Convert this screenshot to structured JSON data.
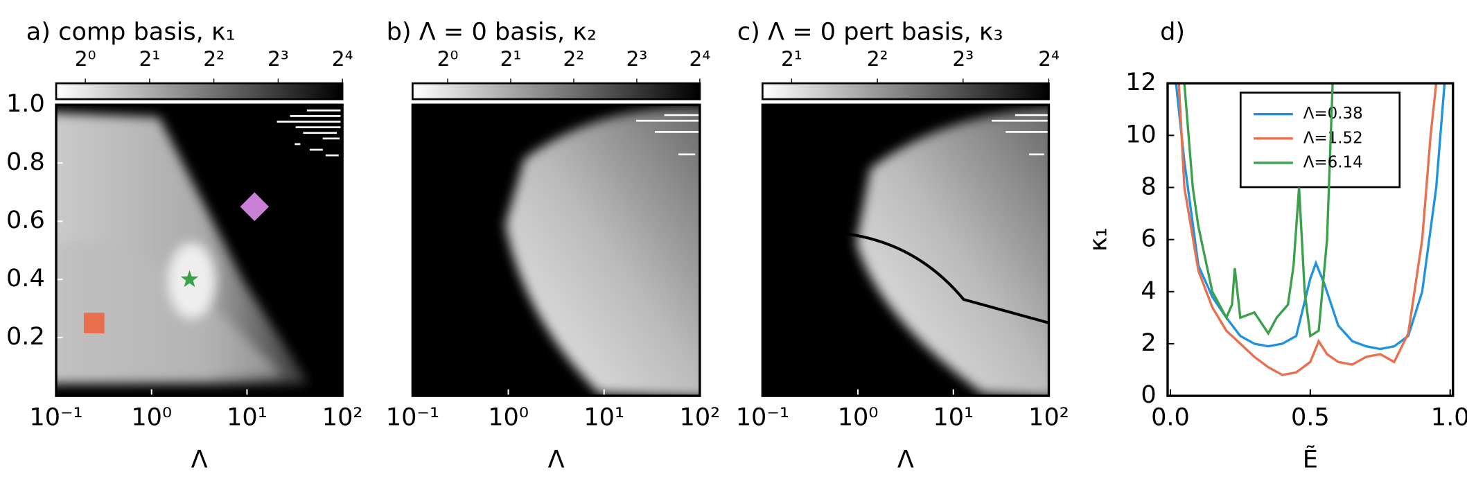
{
  "chart_data": [
    {
      "type": "heatmap",
      "title": "a) comp basis, κ₁",
      "xlabel": "Λ",
      "xlog": true,
      "xlim": [
        0.1,
        100
      ],
      "xticks": [
        {
          "value": 0.1,
          "label": "10⁻¹"
        },
        {
          "value": 1,
          "label": "10⁰"
        },
        {
          "value": 10,
          "label": "10¹"
        },
        {
          "value": 100,
          "label": "10²"
        }
      ],
      "ylim": [
        0,
        1
      ],
      "yticks": [
        0.2,
        0.4,
        0.6,
        0.8,
        {
          "value": 1,
          "label": "1.0"
        }
      ],
      "colorbar": {
        "log": true,
        "clim": [
          0.73,
          16
        ],
        "ticks": [
          {
            "value": 1,
            "label": "2⁰"
          },
          {
            "value": 2,
            "label": "2¹"
          },
          {
            "value": 4,
            "label": "2²"
          },
          {
            "value": 8,
            "label": "2³"
          },
          {
            "value": 16,
            "label": "2⁴"
          }
        ]
      },
      "markers": [
        {
          "x": 0.25,
          "y": 0.25,
          "shape": "square",
          "color": "#e8704f"
        },
        {
          "x": 2.5,
          "y": 0.4,
          "shape": "star",
          "color": "#3aa04a"
        },
        {
          "x": 12,
          "y": 0.65,
          "shape": "diamond",
          "color": "#c97fd6"
        }
      ]
    },
    {
      "type": "heatmap",
      "title": "b) Λ = 0 basis, κ₂",
      "xlabel": "Λ",
      "xlog": true,
      "xlim": [
        0.1,
        100
      ],
      "xticks": [
        {
          "value": 0.1,
          "label": "10⁻¹"
        },
        {
          "value": 1,
          "label": "10⁰"
        },
        {
          "value": 10,
          "label": "10¹"
        },
        {
          "value": 100,
          "label": "10²"
        }
      ],
      "ylim": [
        0,
        1
      ],
      "colorbar": {
        "log": true,
        "clim": [
          0.68,
          16
        ],
        "ticks": [
          {
            "value": 1,
            "label": "2⁰"
          },
          {
            "value": 2,
            "label": "2¹"
          },
          {
            "value": 4,
            "label": "2²"
          },
          {
            "value": 8,
            "label": "2³"
          },
          {
            "value": 16,
            "label": "2⁴"
          }
        ]
      }
    },
    {
      "type": "heatmap",
      "title": "c) Λ = 0 pert basis, κ₃",
      "xlabel": "Λ",
      "xlog": true,
      "xlim": [
        0.1,
        100
      ],
      "xticks": [
        {
          "value": 0.1,
          "label": "10⁻¹"
        },
        {
          "value": 1,
          "label": "10⁰"
        },
        {
          "value": 10,
          "label": "10¹"
        },
        {
          "value": 100,
          "label": "10²"
        }
      ],
      "ylim": [
        0,
        1
      ],
      "colorbar": {
        "log": true,
        "clim": [
          1.58,
          16
        ],
        "ticks": [
          {
            "value": 2,
            "label": "2¹"
          },
          {
            "value": 4,
            "label": "2²"
          },
          {
            "value": 8,
            "label": "2³"
          },
          {
            "value": 16,
            "label": "2⁴"
          }
        ]
      }
    },
    {
      "type": "line",
      "title": "d)",
      "xlabel": "Ẽ",
      "ylabel": "κ₁",
      "xlim": [
        -0.01,
        1.01
      ],
      "xticks": [
        {
          "value": 0,
          "label": "0.0"
        },
        {
          "value": 0.5,
          "label": "0.5"
        },
        {
          "value": 1,
          "label": "1.0"
        }
      ],
      "ylim": [
        0,
        12
      ],
      "yticks": [
        0,
        2,
        4,
        6,
        8,
        10,
        12
      ],
      "legend": "upper center",
      "series": [
        {
          "name": "Λ=0.38",
          "color": "#1f93e0",
          "x": [
            0.02,
            0.05,
            0.1,
            0.15,
            0.2,
            0.25,
            0.3,
            0.35,
            0.4,
            0.45,
            0.5,
            0.52,
            0.55,
            0.6,
            0.65,
            0.7,
            0.75,
            0.8,
            0.85,
            0.9,
            0.95,
            0.98
          ],
          "values": [
            12,
            9,
            5,
            3.8,
            3,
            2.3,
            2,
            1.9,
            2,
            2.3,
            4.5,
            5.1,
            4.3,
            2.7,
            2.1,
            1.9,
            1.8,
            1.9,
            2.3,
            4,
            8,
            12
          ]
        },
        {
          "name": "Λ=1.52",
          "color": "#e8704f",
          "x": [
            0.03,
            0.05,
            0.1,
            0.15,
            0.2,
            0.25,
            0.3,
            0.35,
            0.4,
            0.45,
            0.5,
            0.53,
            0.56,
            0.6,
            0.65,
            0.7,
            0.75,
            0.8,
            0.85,
            0.9,
            0.93,
            0.95
          ],
          "values": [
            12,
            8,
            4.8,
            3.4,
            2.5,
            2,
            1.5,
            1.1,
            0.8,
            0.9,
            1.3,
            2.1,
            1.6,
            1.3,
            1.2,
            1.5,
            1.6,
            1.3,
            2.4,
            6,
            10,
            12
          ]
        },
        {
          "name": "Λ=6.14",
          "color": "#3aa04a",
          "x": [
            0.05,
            0.08,
            0.1,
            0.15,
            0.2,
            0.22,
            0.23,
            0.25,
            0.3,
            0.35,
            0.38,
            0.42,
            0.44,
            0.46,
            0.48,
            0.5,
            0.53,
            0.56,
            0.58
          ],
          "values": [
            12,
            8,
            6.5,
            4,
            3,
            3.5,
            4.9,
            3,
            3.2,
            2.4,
            3,
            3.5,
            5,
            8,
            4,
            2.3,
            2.5,
            6,
            12
          ]
        }
      ]
    }
  ]
}
